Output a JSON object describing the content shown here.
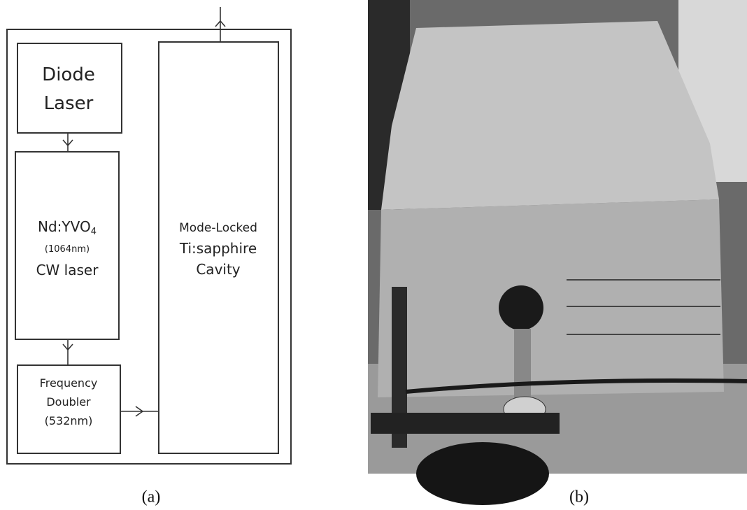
{
  "panel_a": {
    "nodes": [
      {
        "lines": [
          {
            "text": "Diode"
          },
          {
            "text": "Laser"
          }
        ]
      },
      {
        "lines": [
          {
            "text": "Nd:YVO",
            "subscript": "4"
          },
          {
            "text": "(1064nm)"
          },
          {
            "text": "CW laser"
          }
        ]
      },
      {
        "lines": [
          {
            "text": "Frequency"
          },
          {
            "text": "Doubler"
          },
          {
            "text": "(532nm)"
          }
        ]
      },
      {
        "lines": [
          {
            "text": "Mode-Locked"
          },
          {
            "text": "Ti:sapphire"
          },
          {
            "text": "Cavity"
          }
        ]
      }
    ],
    "caption": "(a)"
  },
  "panel_b": {
    "caption": "(b)"
  }
}
